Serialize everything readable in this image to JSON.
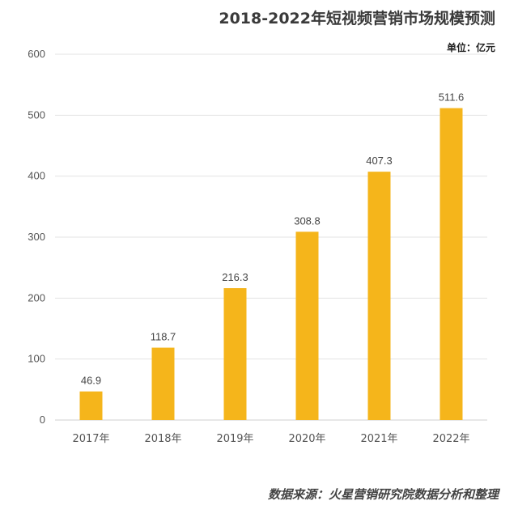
{
  "chart_data": {
    "type": "bar",
    "title": "2018-2022年短视频营销市场规模预测",
    "unit_label": "单位：亿元",
    "categories": [
      "2017年",
      "2018年",
      "2019年",
      "2020年",
      "2021年",
      "2022年"
    ],
    "values": [
      46.9,
      118.7,
      216.3,
      308.8,
      407.3,
      511.6
    ],
    "value_labels": [
      "46.9",
      "118.7",
      "216.3",
      "308.8",
      "407.3",
      "511.6"
    ],
    "yticks": [
      "0",
      "100",
      "200",
      "300",
      "400",
      "500",
      "600"
    ],
    "ylim": [
      0,
      600
    ],
    "grid": true,
    "legend": "none",
    "bar_color": "#F5B51B",
    "grid_color": "#e3e3e3",
    "source": "数据来源：火星营销研究院数据分析和整理"
  }
}
